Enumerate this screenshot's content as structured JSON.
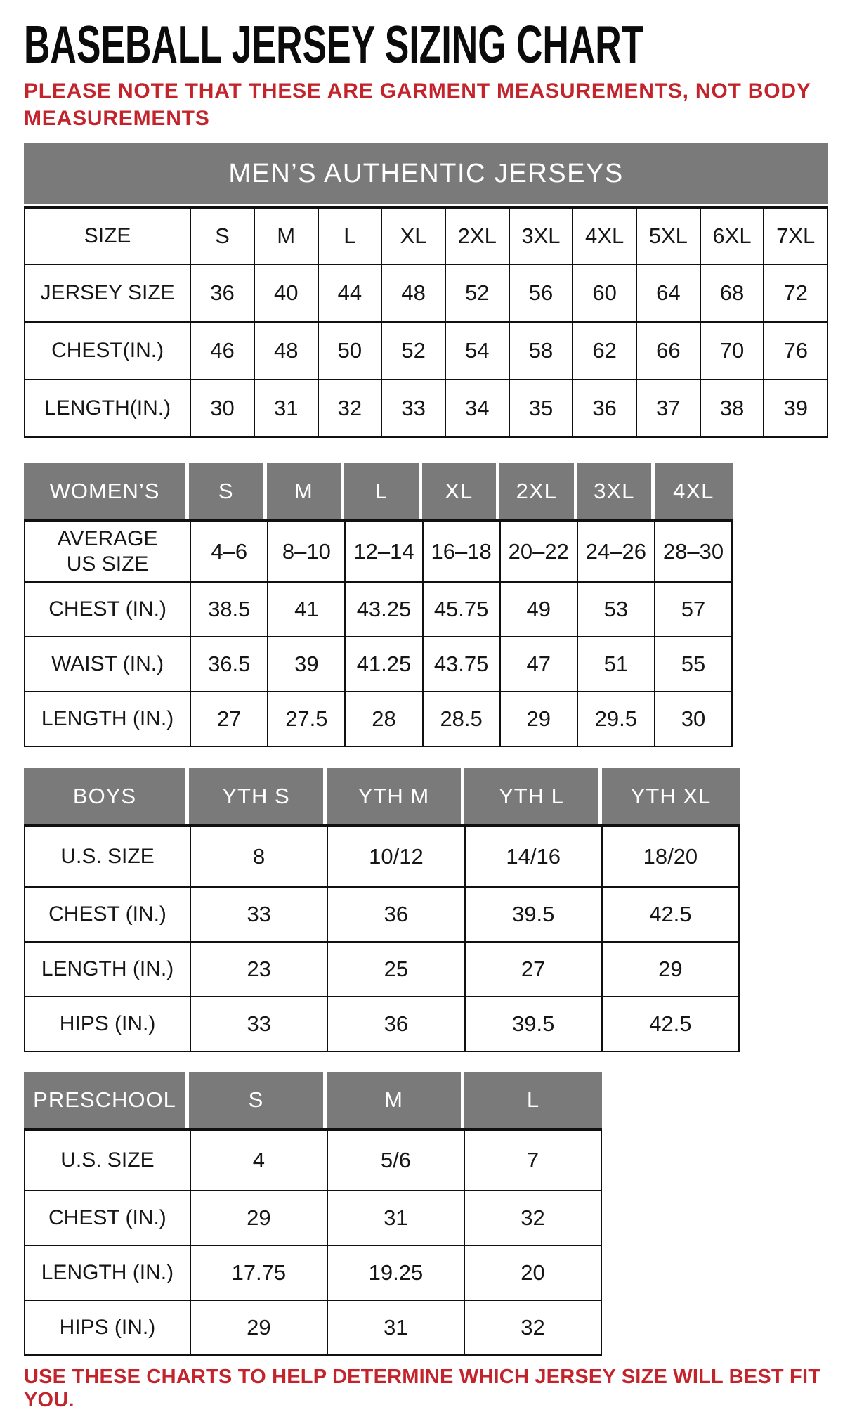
{
  "page": {
    "title": "BASEBALL JERSEY SIZING CHART",
    "note_line1": "PLEASE NOTE THAT THESE ARE GARMENT MEASUREMENTS, NOT BODY",
    "note_line2": "MEASUREMENTS",
    "footer": "USE THESE CHARTS TO HELP DETERMINE WHICH JERSEY SIZE WILL BEST FIT YOU.",
    "colors": {
      "accent_red": "#c3242c",
      "header_gray": "#7a7a7a",
      "border_black": "#101010"
    }
  },
  "tables": [
    {
      "id": "mens",
      "banner": "MEN’S AUTHENTIC JERSEYS",
      "columns": [
        "SIZE",
        "S",
        "M",
        "L",
        "XL",
        "2XL",
        "3XL",
        "4XL",
        "5XL",
        "6XL",
        "7XL"
      ],
      "rows": [
        {
          "label": "JERSEY SIZE",
          "values": [
            "36",
            "40",
            "44",
            "48",
            "52",
            "56",
            "60",
            "64",
            "68",
            "72"
          ]
        },
        {
          "label": "CHEST(IN.)",
          "values": [
            "46",
            "48",
            "50",
            "52",
            "54",
            "58",
            "62",
            "66",
            "70",
            "76"
          ]
        },
        {
          "label": "LENGTH(IN.)",
          "values": [
            "30",
            "31",
            "32",
            "33",
            "34",
            "35",
            "36",
            "37",
            "38",
            "39"
          ]
        }
      ]
    },
    {
      "id": "womens",
      "header": [
        "WOMEN’S",
        "S",
        "M",
        "L",
        "XL",
        "2XL",
        "3XL",
        "4XL"
      ],
      "rows": [
        {
          "label": "AVERAGE\nUS SIZE",
          "values": [
            "4–6",
            "8–10",
            "12–14",
            "16–18",
            "20–22",
            "24–26",
            "28–30"
          ]
        },
        {
          "label": "CHEST (IN.)",
          "values": [
            "38.5",
            "41",
            "43.25",
            "45.75",
            "49",
            "53",
            "57"
          ]
        },
        {
          "label": "WAIST (IN.)",
          "values": [
            "36.5",
            "39",
            "41.25",
            "43.75",
            "47",
            "51",
            "55"
          ]
        },
        {
          "label": "LENGTH (IN.)",
          "values": [
            "27",
            "27.5",
            "28",
            "28.5",
            "29",
            "29.5",
            "30"
          ]
        }
      ]
    },
    {
      "id": "boys",
      "header": [
        "BOYS",
        "YTH S",
        "YTH M",
        "YTH L",
        "YTH XL"
      ],
      "rows": [
        {
          "label": "U.S. SIZE",
          "values": [
            "8",
            "10/12",
            "14/16",
            "18/20"
          ]
        },
        {
          "label": "CHEST (IN.)",
          "values": [
            "33",
            "36",
            "39.5",
            "42.5"
          ]
        },
        {
          "label": "LENGTH (IN.)",
          "values": [
            "23",
            "25",
            "27",
            "29"
          ]
        },
        {
          "label": "HIPS (IN.)",
          "values": [
            "33",
            "36",
            "39.5",
            "42.5"
          ]
        }
      ]
    },
    {
      "id": "preschool",
      "header": [
        "PRESCHOOL",
        "S",
        "M",
        "L"
      ],
      "rows": [
        {
          "label": "U.S. SIZE",
          "values": [
            "4",
            "5/6",
            "7"
          ]
        },
        {
          "label": "CHEST (IN.)",
          "values": [
            "29",
            "31",
            "32"
          ]
        },
        {
          "label": "LENGTH (IN.)",
          "values": [
            "17.75",
            "19.25",
            "20"
          ]
        },
        {
          "label": "HIPS (IN.)",
          "values": [
            "29",
            "31",
            "32"
          ]
        }
      ]
    }
  ]
}
